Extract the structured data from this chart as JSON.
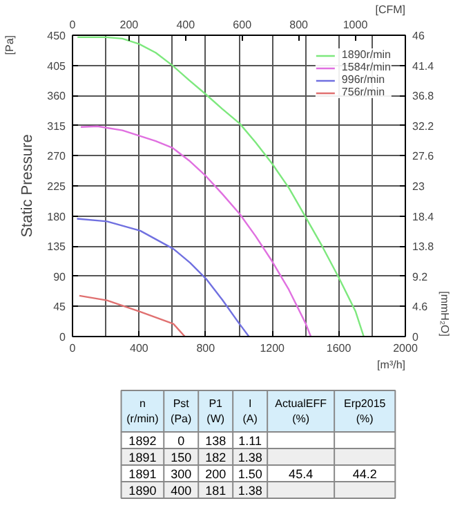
{
  "chart_data": [
    {
      "type": "line",
      "ylabel": "Static Pressure",
      "xlabel": "[m³/h]",
      "x2label": "[CFM]",
      "y2label": "[mmH₂O]",
      "annotations": [
        "[Pa]"
      ],
      "xlim": [
        0,
        2000
      ],
      "xticks": [
        0,
        400,
        800,
        1200,
        1600,
        2000
      ],
      "ylim": [
        0,
        450
      ],
      "yticks": [
        0,
        45,
        90,
        135,
        180,
        225,
        270,
        315,
        360,
        405,
        450
      ],
      "x2lim": [
        0,
        1177
      ],
      "x2ticks": [
        0,
        200,
        400,
        600,
        800,
        1000
      ],
      "y2lim": [
        0,
        46
      ],
      "y2ticks": [
        0,
        4.6,
        9.2,
        13.8,
        18.4,
        23,
        27.6,
        32.2,
        36.8,
        41.4,
        46
      ],
      "grid": true,
      "legend": "top right",
      "marker": "none",
      "line_style": "solid",
      "series": [
        {
          "name": "1890r/min",
          "color": "#7de87d",
          "x": [
            30,
            200,
            300,
            400,
            500,
            600,
            700,
            800,
            900,
            1005,
            1100,
            1200,
            1300,
            1390,
            1500,
            1598,
            1700,
            1750
          ],
          "values": [
            447,
            447,
            445,
            437,
            424,
            405,
            383,
            362,
            340,
            318,
            290,
            258,
            222,
            183,
            135,
            89,
            38,
            0
          ]
        },
        {
          "name": "1584r/min",
          "color": "#e070e0",
          "x": [
            50,
            150,
            300,
            400,
            500,
            600,
            700,
            800,
            900,
            1005,
            1100,
            1198,
            1300,
            1400,
            1432
          ],
          "values": [
            313,
            314,
            308,
            300,
            292,
            282,
            263,
            240,
            213,
            183,
            150,
            113,
            70,
            20,
            0
          ]
        },
        {
          "name": "996r/min",
          "color": "#7070e0",
          "x": [
            27,
            207,
            407,
            606,
            707,
            807,
            900,
            1000,
            1060
          ],
          "values": [
            176,
            172,
            158,
            131,
            110,
            85,
            55,
            20,
            0
          ]
        },
        {
          "name": "756r/min",
          "color": "#e07070",
          "x": [
            41,
            207,
            407,
            606,
            675
          ],
          "values": [
            61,
            54,
            37,
            19,
            0
          ]
        }
      ]
    },
    {
      "type": "other",
      "categories": [
        "n\n(r/min)",
        "Pst\n(Pa)",
        "P1\n(W)",
        "I\n(A)",
        "ActualEFF\n(%)",
        "Erp2015\n(%)"
      ],
      "cell_labels": [
        [
          "1892",
          "0",
          "138",
          "1.11",
          null,
          null
        ],
        [
          "1891",
          "150",
          "182",
          "1.38",
          null,
          null
        ],
        [
          "1891",
          "300",
          "200",
          "1.50",
          "45.4",
          "44.2"
        ],
        [
          "1890",
          "400",
          "181",
          "1.38",
          null,
          null
        ]
      ]
    }
  ]
}
